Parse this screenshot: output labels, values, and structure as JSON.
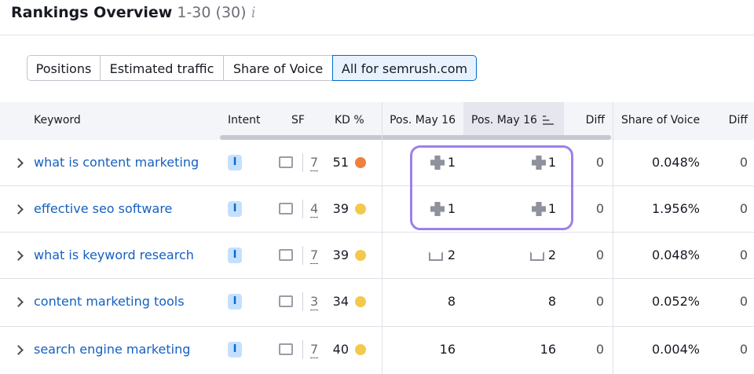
{
  "header": {
    "title": "Rankings Overview",
    "range": "1-30",
    "count": "(30)"
  },
  "tabs": {
    "items": [
      "Positions",
      "Estimated traffic",
      "Share of Voice",
      "All for semrush.com"
    ],
    "active": 3
  },
  "table": {
    "columns": [
      "Keyword",
      "Intent",
      "SF",
      "KD %",
      "Pos. May 16",
      "Pos. May 16",
      "Diff",
      "Share of Voice",
      "Diff"
    ],
    "rows": [
      {
        "keyword": "what is content marketing",
        "intent": "I",
        "sf": "7",
        "kd": "51",
        "kd_color": "#f0803c",
        "icon": "snippet",
        "pos1": "1",
        "pos2": "1",
        "diff": "0",
        "sov": "0.048%",
        "sov_diff": "0"
      },
      {
        "keyword": "effective seo software",
        "intent": "I",
        "sf": "4",
        "kd": "39",
        "kd_color": "#f2c94c",
        "icon": "snippet",
        "pos1": "1",
        "pos2": "1",
        "diff": "0",
        "sov": "1.956%",
        "sov_diff": "0"
      },
      {
        "keyword": "what is keyword research",
        "intent": "I",
        "sf": "7",
        "kd": "39",
        "kd_color": "#f2c94c",
        "icon": "crown",
        "pos1": "2",
        "pos2": "2",
        "diff": "0",
        "sov": "0.048%",
        "sov_diff": "0"
      },
      {
        "keyword": "content marketing tools",
        "intent": "I",
        "sf": "3",
        "kd": "34",
        "kd_color": "#f2c94c",
        "icon": null,
        "pos1": "8",
        "pos2": "8",
        "diff": "0",
        "sov": "0.052%",
        "sov_diff": "0"
      },
      {
        "keyword": "search engine marketing",
        "intent": "I",
        "sf": "7",
        "kd": "40",
        "kd_color": "#f2c94c",
        "icon": null,
        "pos1": "16",
        "pos2": "16",
        "diff": "0",
        "sov": "0.004%",
        "sov_diff": "0"
      }
    ]
  }
}
